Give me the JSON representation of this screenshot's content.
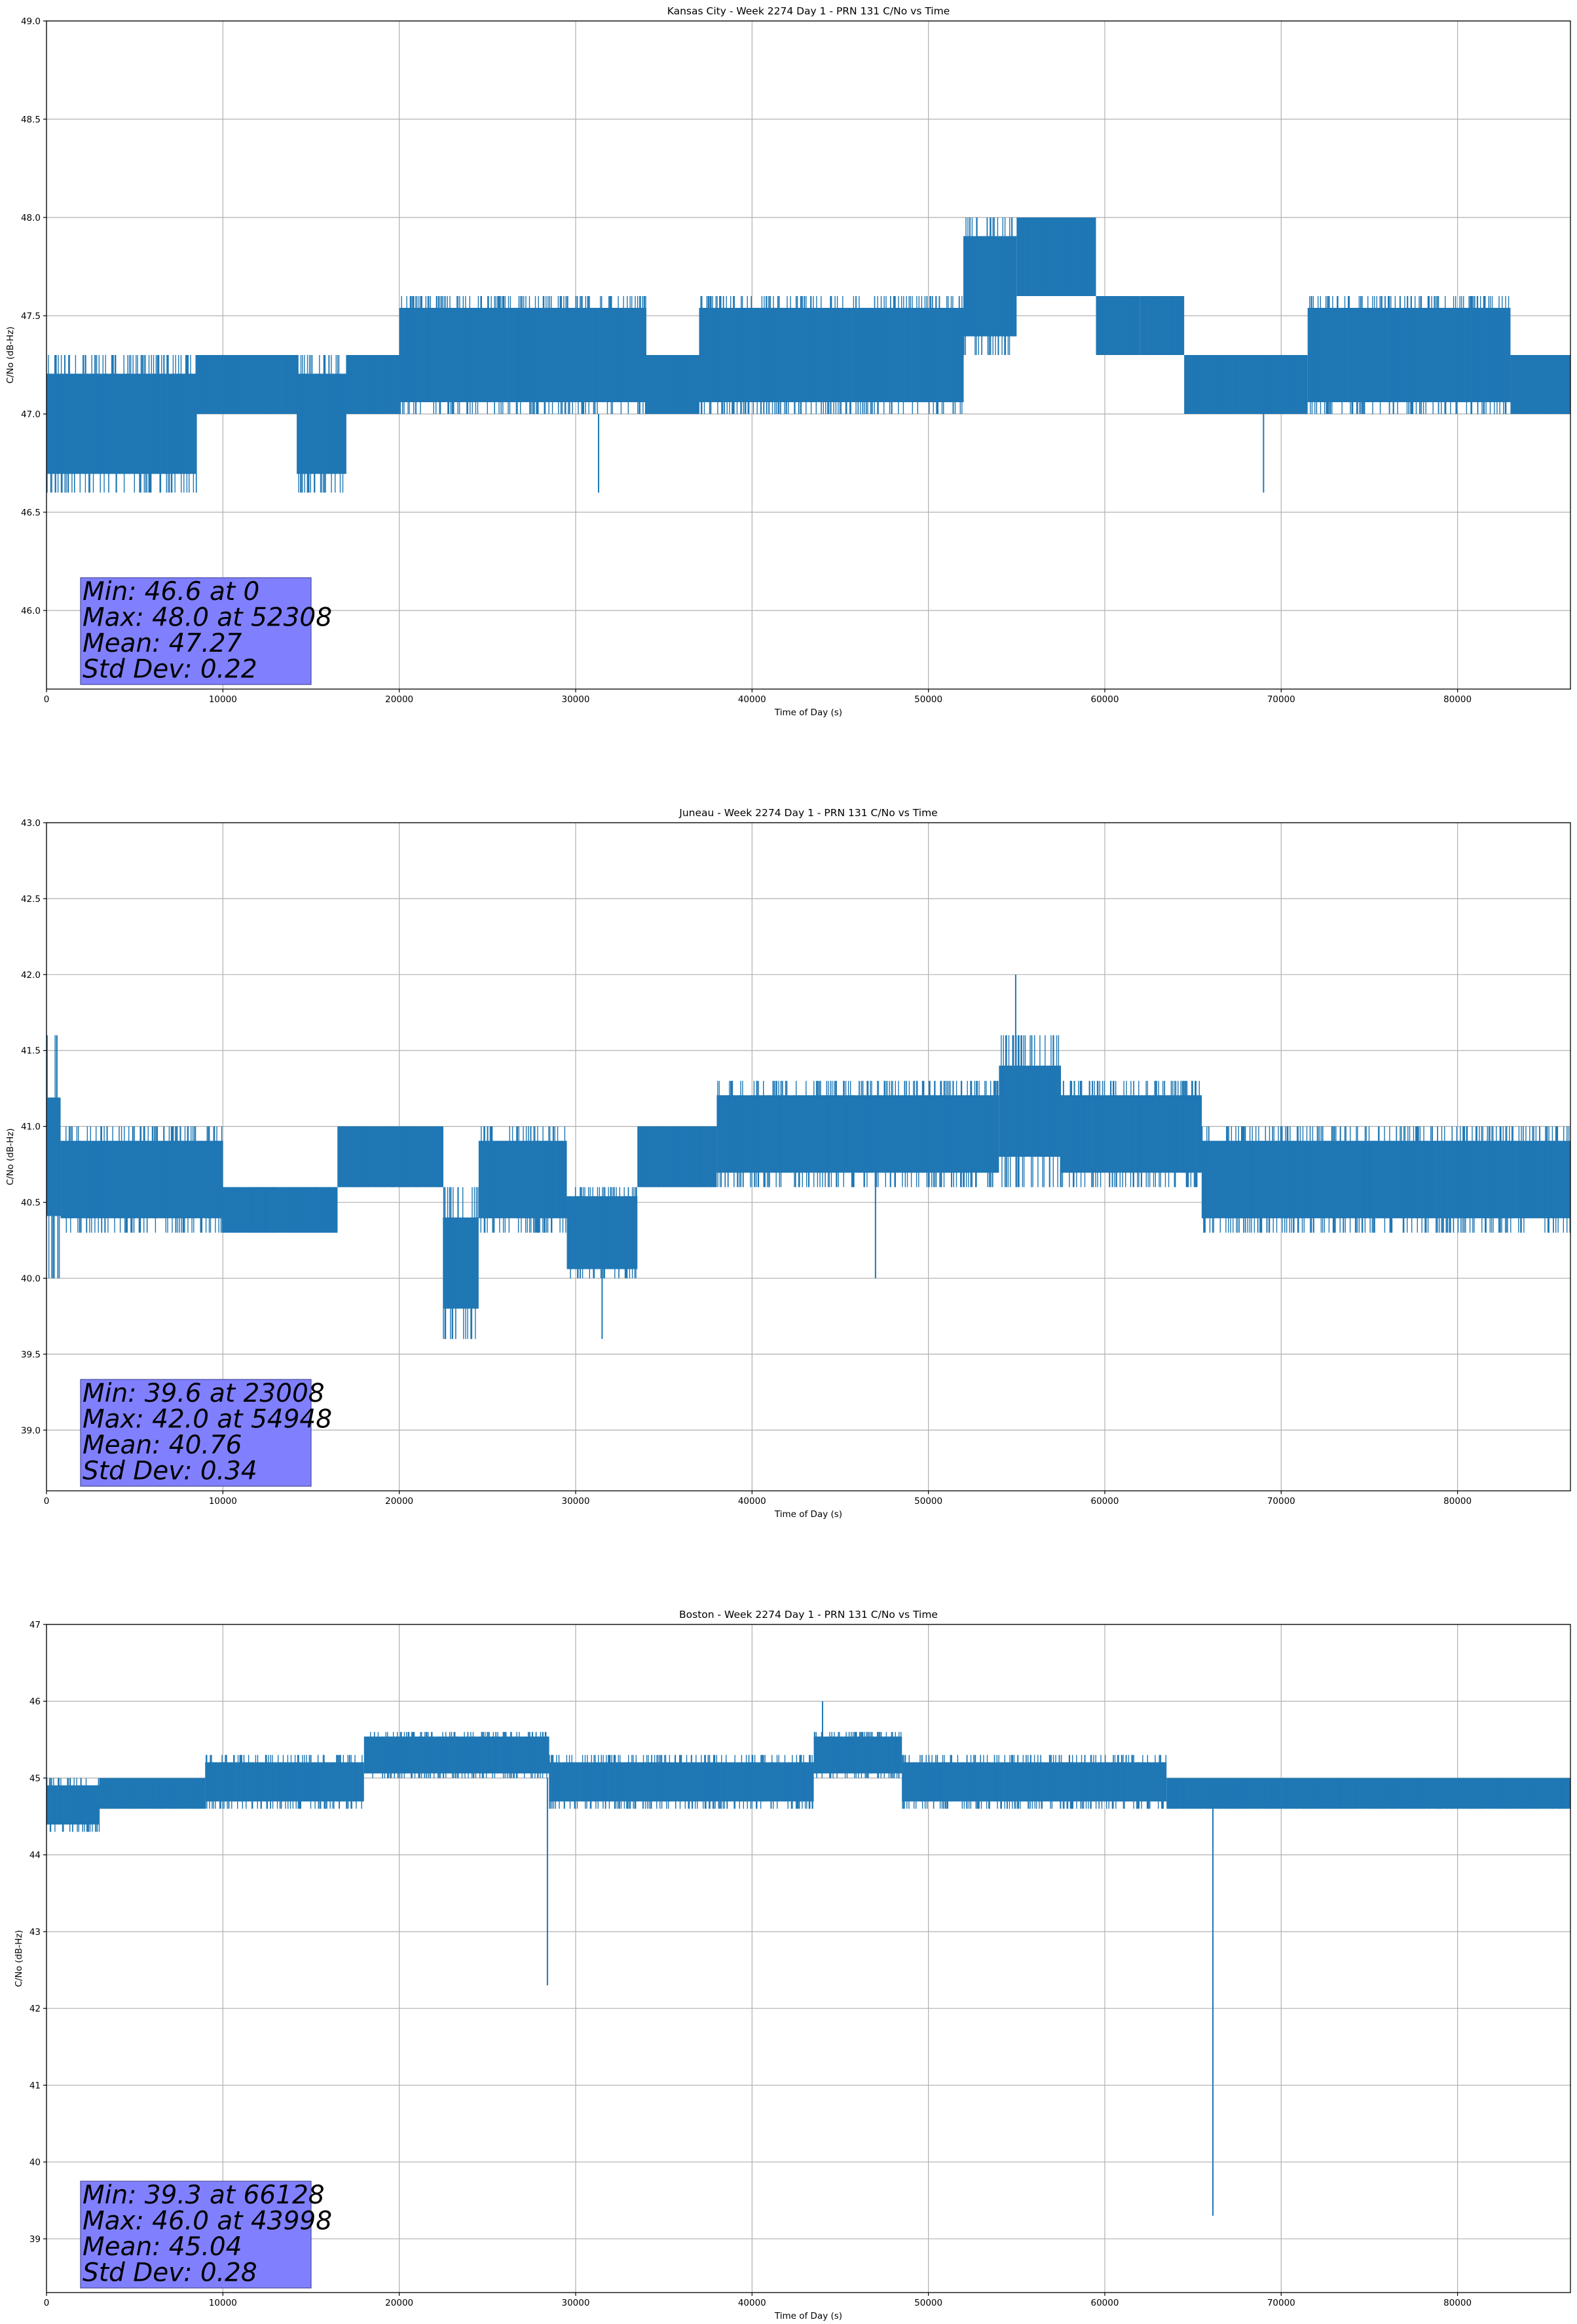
{
  "chart_data": [
    {
      "type": "line",
      "title": "Kansas City - Week 2274 Day 1 - PRN 131 C/No vs Time",
      "xlabel": "Time of Day (s)",
      "ylabel": "C/No (dB-Hz)",
      "xlim": [
        0,
        86400
      ],
      "ylim": [
        45.6,
        49.0
      ],
      "xticks": [
        0,
        10000,
        20000,
        30000,
        40000,
        50000,
        60000,
        70000,
        80000
      ],
      "yticks": [
        "46.0",
        "46.5",
        "47.0",
        "47.5",
        "48.0",
        "48.5",
        "49.0"
      ],
      "grid": true,
      "series": [
        {
          "color": "#1f77b4",
          "bands": [
            {
              "x": [
                0,
                8500
              ],
              "low": 46.6,
              "high": 47.3
            },
            {
              "x": [
                8500,
                14200
              ],
              "low": 47.0,
              "high": 47.3
            },
            {
              "x": [
                14200,
                17000
              ],
              "low": 46.6,
              "high": 47.3
            },
            {
              "x": [
                17000,
                20000
              ],
              "low": 47.0,
              "high": 47.3
            },
            {
              "x": [
                20000,
                34000
              ],
              "low": 47.0,
              "high": 47.6
            },
            {
              "x": [
                34000,
                37000
              ],
              "low": 47.0,
              "high": 47.3
            },
            {
              "x": [
                37000,
                52000
              ],
              "low": 47.0,
              "high": 47.6
            },
            {
              "x": [
                52000,
                55000
              ],
              "low": 47.3,
              "high": 48.0
            },
            {
              "x": [
                55000,
                59500
              ],
              "low": 47.6,
              "high": 48.0
            },
            {
              "x": [
                59500,
                62000
              ],
              "low": 47.3,
              "high": 47.6
            },
            {
              "x": [
                62000,
                64500
              ],
              "low": 47.3,
              "high": 47.6
            },
            {
              "x": [
                64500,
                71500
              ],
              "low": 47.0,
              "high": 47.3
            },
            {
              "x": [
                71500,
                83000
              ],
              "low": 47.0,
              "high": 47.6
            },
            {
              "x": [
                83000,
                86400
              ],
              "low": 47.0,
              "high": 47.3
            }
          ],
          "spikes": [
            {
              "x": 31300,
              "low": 46.6,
              "high": 47.0
            },
            {
              "x": 69000,
              "low": 46.6,
              "high": 47.0
            },
            {
              "x": 56500,
              "low": 47.6,
              "high": 48.0
            }
          ]
        }
      ],
      "stats": [
        "Min: 46.6 at 0",
        "Max: 48.0 at 52308",
        "Mean: 47.27",
        "Std Dev: 0.22"
      ]
    },
    {
      "type": "line",
      "title": "Juneau - Week 2274 Day 1 - PRN 131 C/No vs Time",
      "xlabel": "Time of Day (s)",
      "ylabel": "C/No (dB-Hz)",
      "xlim": [
        0,
        86400
      ],
      "ylim": [
        38.6,
        43.0
      ],
      "xticks": [
        0,
        10000,
        20000,
        30000,
        40000,
        50000,
        60000,
        70000,
        80000
      ],
      "yticks": [
        "39.0",
        "39.5",
        "40.0",
        "40.5",
        "41.0",
        "41.5",
        "42.0",
        "42.5",
        "43.0"
      ],
      "grid": true,
      "series": [
        {
          "color": "#1f77b4",
          "bands": [
            {
              "x": [
                0,
                800
              ],
              "low": 40.0,
              "high": 41.6
            },
            {
              "x": [
                800,
                10000
              ],
              "low": 40.3,
              "high": 41.0
            },
            {
              "x": [
                10000,
                16500
              ],
              "low": 40.3,
              "high": 40.6
            },
            {
              "x": [
                16500,
                22500
              ],
              "low": 40.6,
              "high": 41.0
            },
            {
              "x": [
                22500,
                24500
              ],
              "low": 39.6,
              "high": 40.6
            },
            {
              "x": [
                24500,
                29500
              ],
              "low": 40.3,
              "high": 41.0
            },
            {
              "x": [
                29500,
                33500
              ],
              "low": 40.0,
              "high": 40.6
            },
            {
              "x": [
                33500,
                38000
              ],
              "low": 40.6,
              "high": 41.0
            },
            {
              "x": [
                38000,
                54000
              ],
              "low": 40.6,
              "high": 41.3
            },
            {
              "x": [
                54000,
                57500
              ],
              "low": 40.6,
              "high": 41.6
            },
            {
              "x": [
                57500,
                65500
              ],
              "low": 40.6,
              "high": 41.3
            },
            {
              "x": [
                65500,
                73000
              ],
              "low": 40.3,
              "high": 41.0
            },
            {
              "x": [
                73000,
                86400
              ],
              "low": 40.3,
              "high": 41.0
            }
          ],
          "spikes": [
            {
              "x": 54948,
              "low": 41.3,
              "high": 42.0
            },
            {
              "x": 23008,
              "low": 39.6,
              "high": 40.3
            },
            {
              "x": 47000,
              "low": 40.0,
              "high": 40.6
            },
            {
              "x": 31500,
              "low": 39.6,
              "high": 40.3
            }
          ]
        }
      ],
      "stats": [
        "Min: 39.6 at 23008",
        "Max: 42.0 at 54948",
        "Mean: 40.76",
        "Std Dev: 0.34"
      ]
    },
    {
      "type": "line",
      "title": "Boston - Week 2274 Day 1 - PRN 131 C/No vs Time",
      "xlabel": "Time of Day (s)",
      "ylabel": "C/No (dB-Hz)",
      "xlim": [
        0,
        86400
      ],
      "ylim": [
        38.3,
        47.0
      ],
      "xticks": [
        0,
        10000,
        20000,
        30000,
        40000,
        50000,
        60000,
        70000,
        80000
      ],
      "yticks": [
        "39",
        "40",
        "41",
        "42",
        "43",
        "44",
        "45",
        "46",
        "47"
      ],
      "grid": true,
      "series": [
        {
          "color": "#1f77b4",
          "bands": [
            {
              "x": [
                0,
                3000
              ],
              "low": 44.3,
              "high": 45.0
            },
            {
              "x": [
                3000,
                9000
              ],
              "low": 44.6,
              "high": 45.0
            },
            {
              "x": [
                9000,
                18000
              ],
              "low": 44.6,
              "high": 45.3
            },
            {
              "x": [
                18000,
                28500
              ],
              "low": 45.0,
              "high": 45.6
            },
            {
              "x": [
                28500,
                43500
              ],
              "low": 44.6,
              "high": 45.3
            },
            {
              "x": [
                43500,
                48500
              ],
              "low": 45.0,
              "high": 45.6
            },
            {
              "x": [
                48500,
                57000
              ],
              "low": 44.6,
              "high": 45.3
            },
            {
              "x": [
                57000,
                63500
              ],
              "low": 44.6,
              "high": 45.3
            },
            {
              "x": [
                63500,
                86400
              ],
              "low": 44.6,
              "high": 45.0
            }
          ],
          "spikes": [
            {
              "x": 28400,
              "low": 42.3,
              "high": 45.0
            },
            {
              "x": 66128,
              "low": 39.3,
              "high": 44.6
            },
            {
              "x": 43998,
              "low": 45.3,
              "high": 46.0
            }
          ]
        }
      ],
      "stats": [
        "Min: 39.3 at 66128",
        "Max: 46.0 at 43998",
        "Mean: 45.04",
        "Std Dev: 0.28"
      ]
    }
  ],
  "colors": {
    "line": "#1f77b4",
    "grid": "#b0b0b0",
    "stats_box_fill": "#8080ff",
    "stats_box_edge": "#4a4a99"
  }
}
